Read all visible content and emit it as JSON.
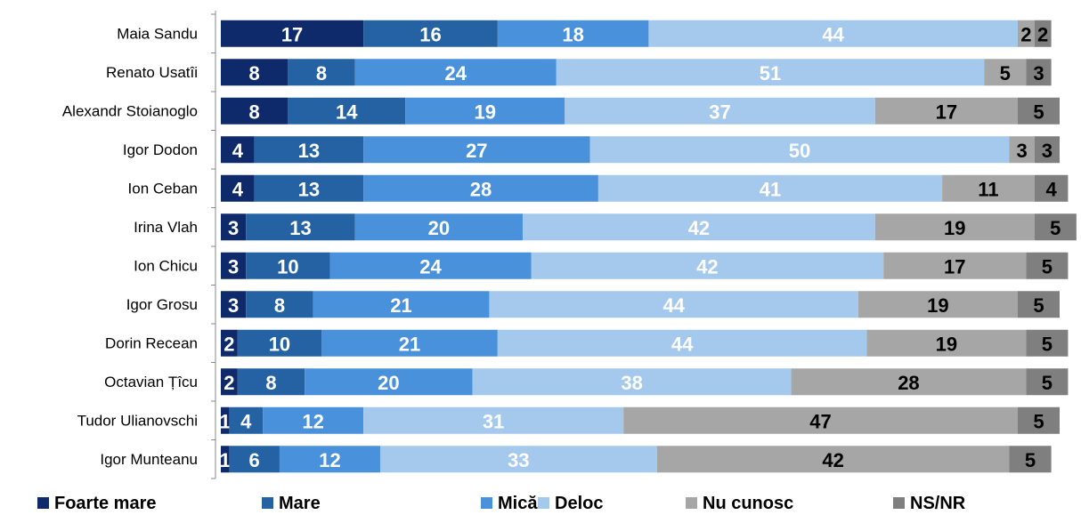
{
  "chart_data": {
    "type": "stacked_barh",
    "categories": [
      "Maia Sandu",
      "Renato Usatîi",
      "Alexandr Stoianoglo",
      "Igor Dodon",
      "Ion Ceban",
      "Irina Vlah",
      "Ion Chicu",
      "Igor Grosu",
      "Dorin Recean",
      "Octavian Țîcu",
      "Tudor Ulianovschi",
      "Igor Munteanu"
    ],
    "series": [
      {
        "name": "Foarte mare",
        "color": "#0e2a6a",
        "label_color": "#ffffff",
        "values": [
          17,
          8,
          8,
          4,
          4,
          3,
          3,
          3,
          2,
          2,
          1,
          1
        ]
      },
      {
        "name": "Mare",
        "color": "#2462a4",
        "label_color": "#ffffff",
        "values": [
          16,
          8,
          14,
          13,
          13,
          13,
          10,
          8,
          10,
          8,
          4,
          6
        ]
      },
      {
        "name": "Mică",
        "color": "#4a91db",
        "label_color": "#ffffff",
        "values": [
          18,
          24,
          19,
          27,
          28,
          20,
          24,
          21,
          21,
          20,
          12,
          12
        ]
      },
      {
        "name": "Deloc",
        "color": "#a4c9ed",
        "label_color": "#ffffff",
        "values": [
          44,
          51,
          37,
          50,
          41,
          42,
          42,
          44,
          44,
          38,
          31,
          33
        ]
      },
      {
        "name": "Nu cunosc",
        "color": "#a6a6a6",
        "label_color": "#000000",
        "values": [
          2,
          5,
          17,
          3,
          11,
          19,
          17,
          19,
          19,
          28,
          47,
          42
        ]
      },
      {
        "name": "NS/NR",
        "color": "#7f7f7f",
        "label_color": "#000000",
        "values": [
          2,
          3,
          5,
          3,
          4,
          5,
          5,
          5,
          5,
          5,
          5,
          5
        ]
      }
    ],
    "xlim": [
      0,
      100
    ],
    "legend": "bottom"
  }
}
